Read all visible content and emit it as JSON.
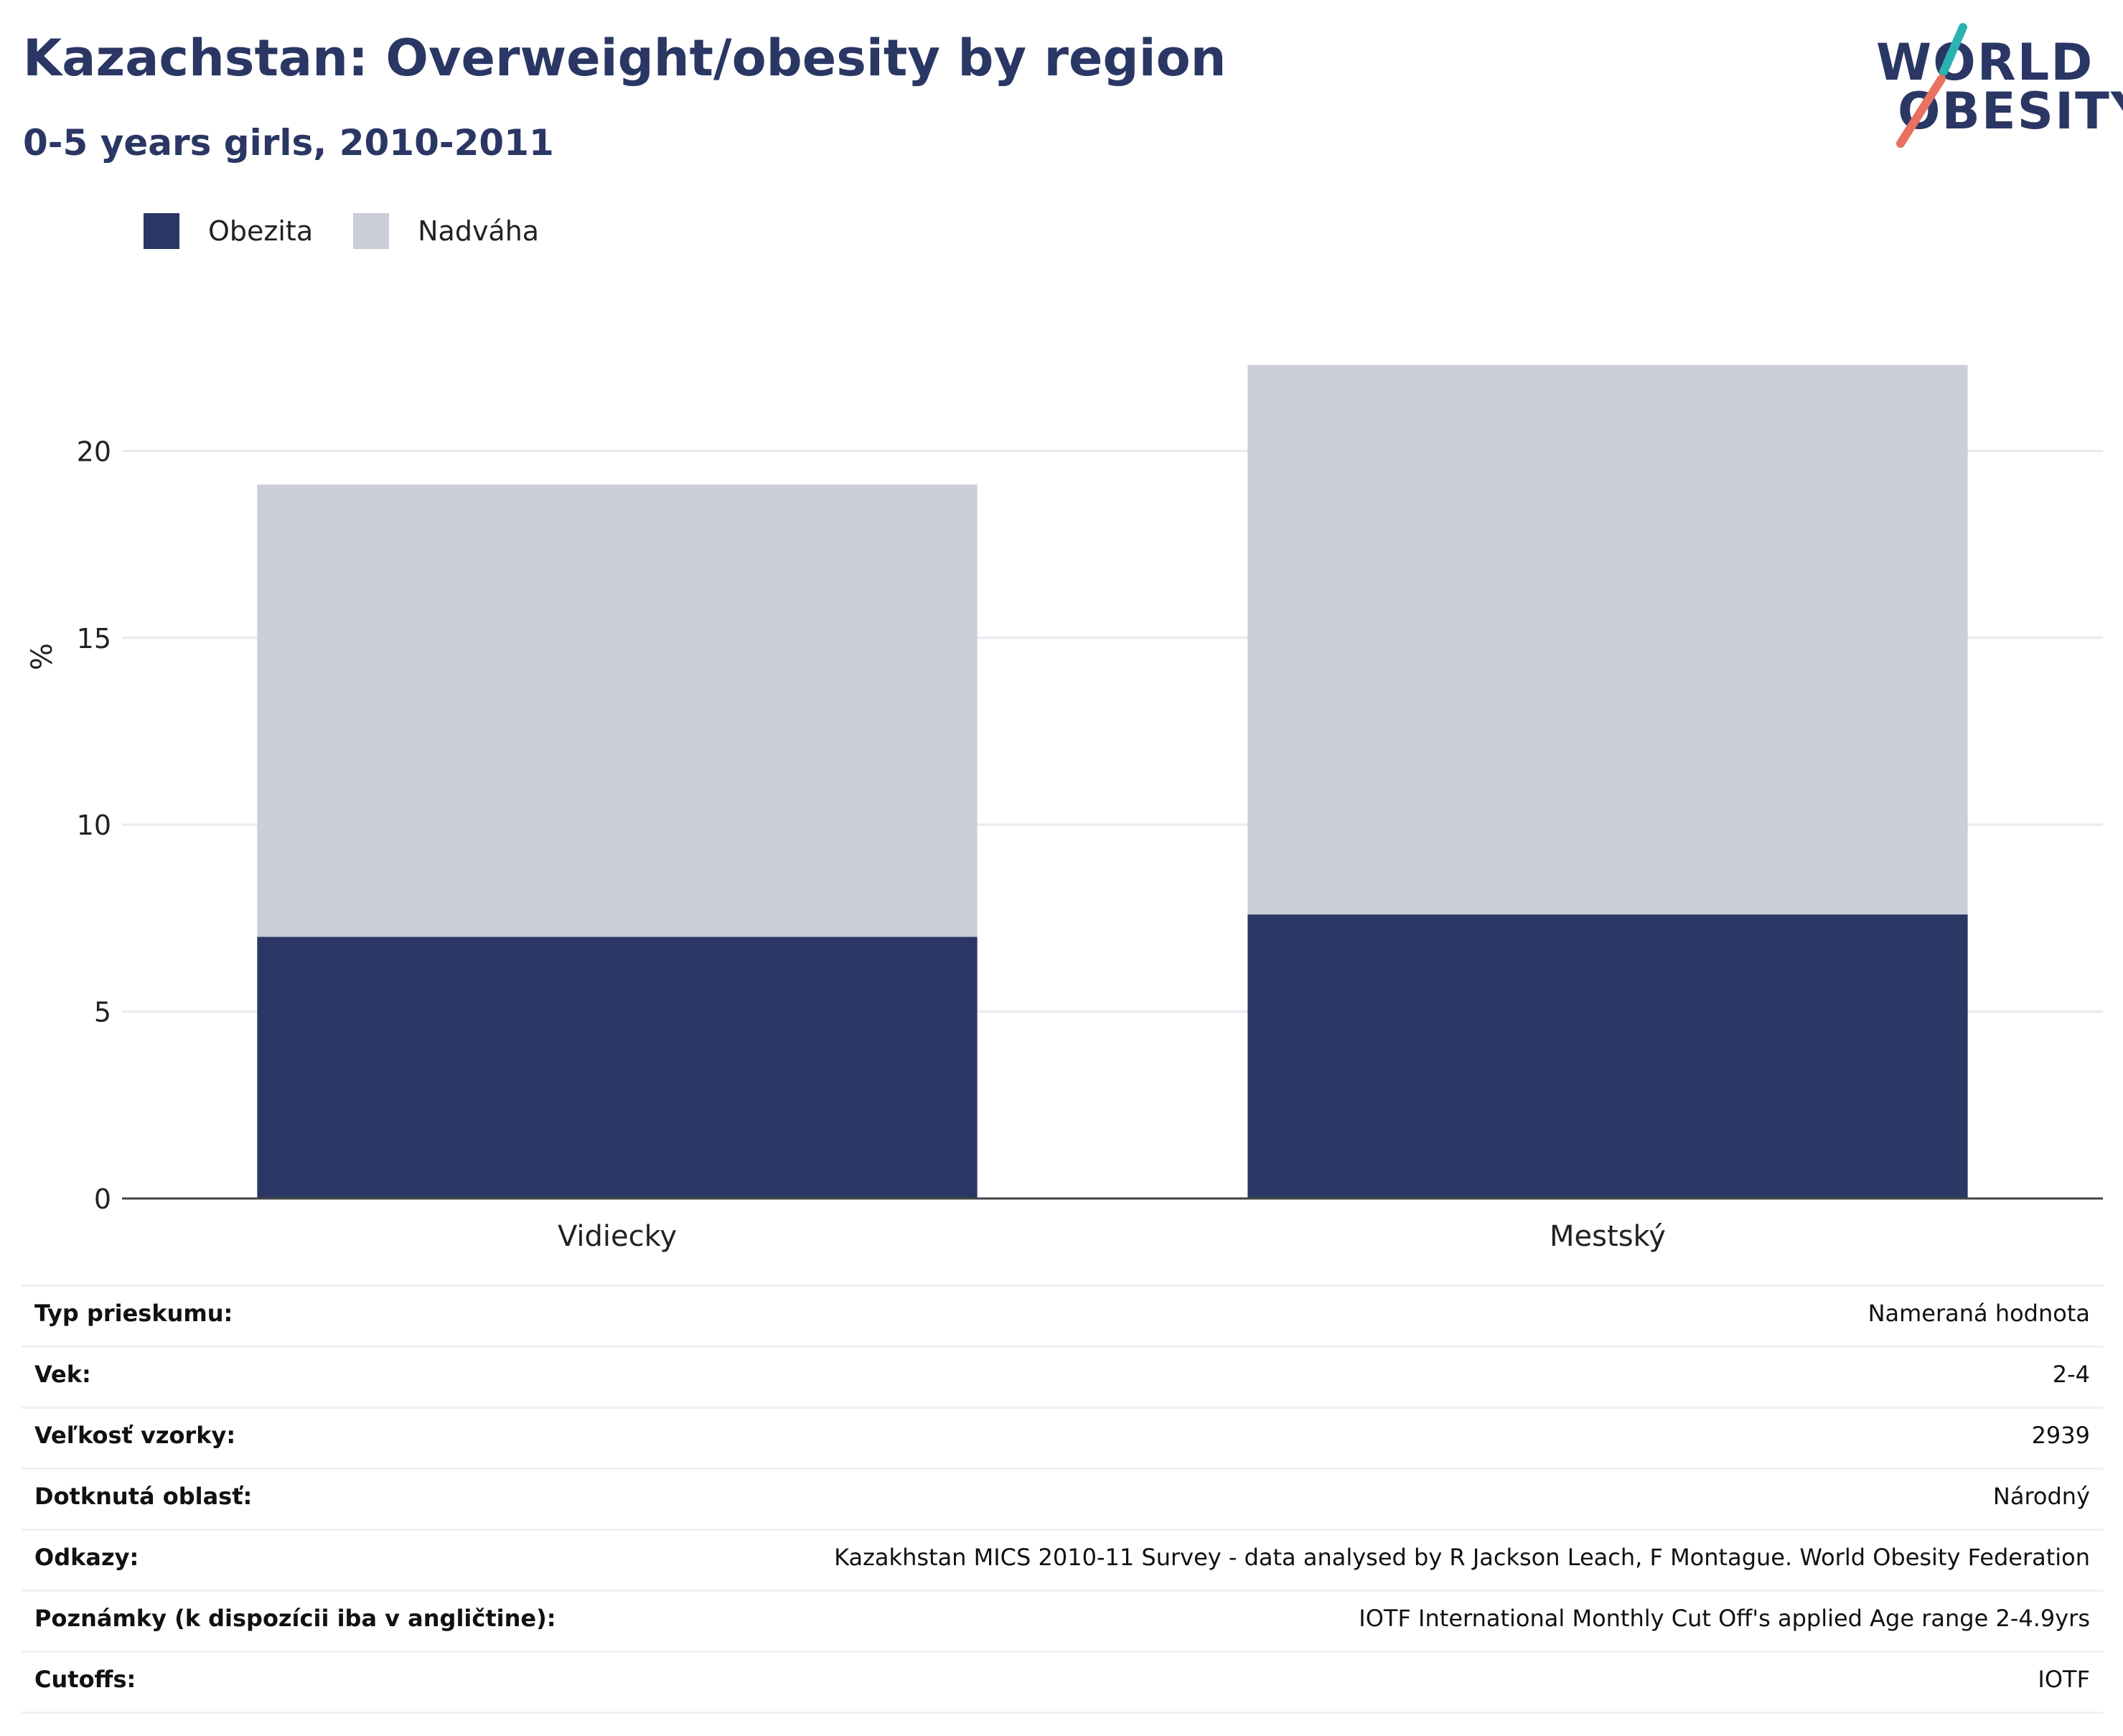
{
  "header": {
    "title": "Kazachstan: Overweight/obesity by region",
    "subtitle": "0-5 years girls, 2010-2011"
  },
  "logo": {
    "line1": "WORLD",
    "line2": "OBESITY",
    "accent_teal": "#2bb3b1",
    "accent_coral": "#e8715f"
  },
  "colors": {
    "obesity": "#2a3764",
    "overweight": "#cbcdd9",
    "text": "#2a3764"
  },
  "chart_data": {
    "type": "bar",
    "stacked": true,
    "categories": [
      "Vidiecky",
      "Mestský"
    ],
    "series": [
      {
        "name": "Obezita",
        "values": [
          7.0,
          7.6
        ],
        "color": "#2a3764"
      },
      {
        "name": "Nadváha",
        "values": [
          12.1,
          14.7
        ],
        "color": "#cbcdd9"
      }
    ],
    "ylabel": "%",
    "ylim": [
      0,
      24
    ],
    "yticks": [
      0,
      5,
      10,
      15,
      20
    ],
    "grid": true,
    "legend": "top-left"
  },
  "info": [
    {
      "key": "Typ prieskumu:",
      "value": "Nameraná hodnota"
    },
    {
      "key": "Vek:",
      "value": "2-4"
    },
    {
      "key": "Veľkosť vzorky:",
      "value": "2939"
    },
    {
      "key": "Dotknutá oblasť:",
      "value": "Národný"
    },
    {
      "key": "Odkazy:",
      "value": "Kazakhstan MICS 2010-11 Survey - data analysed by R Jackson Leach, F Montague. World Obesity Federation"
    },
    {
      "key": "Poznámky (k dispozícii iba v angličtine):",
      "value": "IOTF International Monthly Cut Off's applied Age range 2-4.9yrs"
    },
    {
      "key": "Cutoffs:",
      "value": "IOTF"
    }
  ]
}
